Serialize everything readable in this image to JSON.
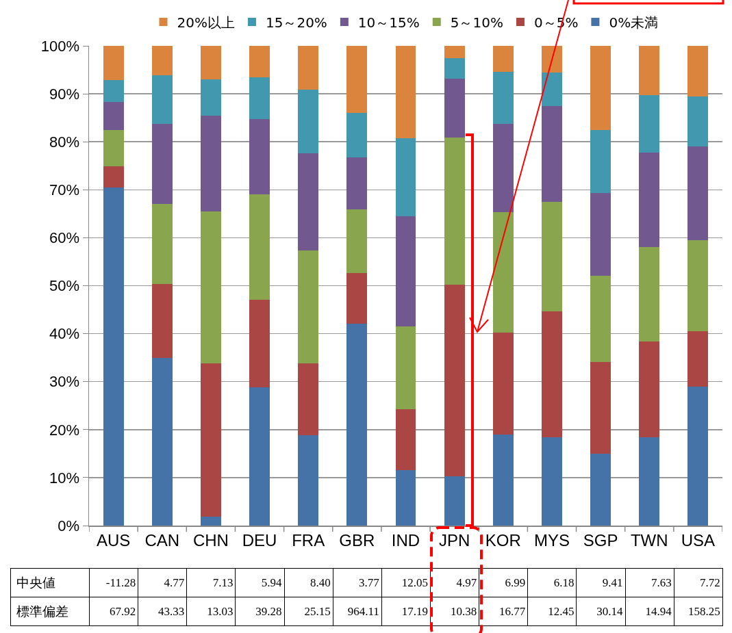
{
  "chart_data": {
    "type": "bar",
    "stacked": true,
    "categories": [
      "AUS",
      "CAN",
      "CHN",
      "DEU",
      "FRA",
      "GBR",
      "IND",
      "JPN",
      "KOR",
      "MYS",
      "SGP",
      "TWN",
      "USA"
    ],
    "series": [
      {
        "name": "0%未満",
        "color": "#4572a7",
        "values": [
          70.5,
          35.0,
          1.9,
          28.8,
          18.8,
          42.1,
          11.5,
          10.3,
          19.0,
          18.4,
          15.0,
          18.4,
          29.0
        ]
      },
      {
        "name": "0～5%",
        "color": "#aa4643",
        "values": [
          4.4,
          15.4,
          31.9,
          18.3,
          15.0,
          10.5,
          12.7,
          39.9,
          21.3,
          26.2,
          19.1,
          20.0,
          11.5
        ]
      },
      {
        "name": "5～10%",
        "color": "#89a54e",
        "values": [
          7.6,
          16.7,
          31.7,
          21.9,
          23.5,
          13.3,
          17.3,
          30.7,
          25.0,
          22.9,
          17.9,
          19.7,
          19.0
        ]
      },
      {
        "name": "10～15%",
        "color": "#71588f",
        "values": [
          5.8,
          16.6,
          19.9,
          15.8,
          20.3,
          10.9,
          23.0,
          12.3,
          18.5,
          20.0,
          17.4,
          19.7,
          19.5
        ]
      },
      {
        "name": "15～20%",
        "color": "#4198af",
        "values": [
          4.5,
          10.1,
          7.6,
          8.6,
          13.2,
          9.2,
          16.3,
          4.3,
          10.8,
          6.9,
          13.1,
          11.9,
          10.5
        ]
      },
      {
        "name": "20%以上",
        "color": "#db843d",
        "values": [
          7.2,
          6.2,
          7.0,
          6.6,
          9.2,
          14.0,
          19.2,
          2.5,
          5.4,
          5.6,
          17.5,
          10.3,
          10.5
        ]
      }
    ],
    "ylim": [
      0,
      100
    ],
    "yticks": [
      {
        "value": 0,
        "label": "0%"
      },
      {
        "value": 10,
        "label": "10%"
      },
      {
        "value": 20,
        "label": "20%"
      },
      {
        "value": 30,
        "label": "30%"
      },
      {
        "value": 40,
        "label": "40%"
      },
      {
        "value": 50,
        "label": "50%"
      },
      {
        "value": 60,
        "label": "60%"
      },
      {
        "value": 70,
        "label": "70%"
      },
      {
        "value": 80,
        "label": "80%"
      },
      {
        "value": 90,
        "label": "90%"
      },
      {
        "value": 100,
        "label": "100%"
      }
    ],
    "grid": "y",
    "legend": "top",
    "annotations": [
      "中央値",
      "-11.28",
      "4.77",
      "7.13",
      "5.94",
      "8.40",
      "3.77",
      "12.05",
      "4.97",
      "6.99",
      "6.18",
      "9.41",
      "7.63",
      "7.72",
      "標準偏差",
      "67.92",
      "43.33",
      "13.03",
      "39.28",
      "25.15",
      "964.11",
      "17.19",
      "10.38",
      "16.77",
      "12.45",
      "30.14",
      "14.94",
      "158.25"
    ]
  }
}
